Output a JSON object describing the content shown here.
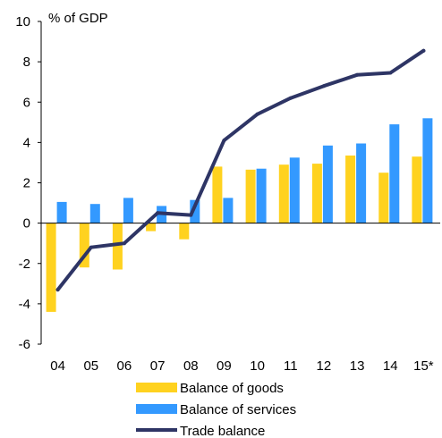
{
  "chart_data": {
    "type": "bar",
    "ylabel": "% of GDP",
    "ylim": [
      -6,
      10
    ],
    "yticks": [
      10,
      8,
      6,
      4,
      2,
      0,
      -2,
      -4,
      -6
    ],
    "categories": [
      "04",
      "05",
      "06",
      "07",
      "08",
      "09",
      "10",
      "11",
      "12",
      "13",
      "14",
      "15*"
    ],
    "grid": false,
    "legend_position": "bottom",
    "series": [
      {
        "name": "Balance of goods",
        "kind": "bar",
        "color": "#FFD21F",
        "values": [
          -4.4,
          -2.2,
          -2.3,
          -0.4,
          -0.8,
          2.8,
          2.65,
          2.9,
          2.95,
          3.35,
          2.5,
          3.3
        ]
      },
      {
        "name": "Balance of services",
        "kind": "bar",
        "color": "#3399FF",
        "values": [
          1.05,
          0.95,
          1.25,
          0.85,
          1.15,
          1.25,
          2.7,
          3.25,
          3.85,
          3.95,
          4.9,
          5.2
        ]
      },
      {
        "name": "Trade balance",
        "kind": "line",
        "color": "#2E3565",
        "values": [
          -3.3,
          -1.2,
          -1.0,
          0.5,
          0.4,
          4.1,
          5.4,
          6.2,
          6.8,
          7.35,
          7.45,
          8.55
        ]
      }
    ]
  }
}
